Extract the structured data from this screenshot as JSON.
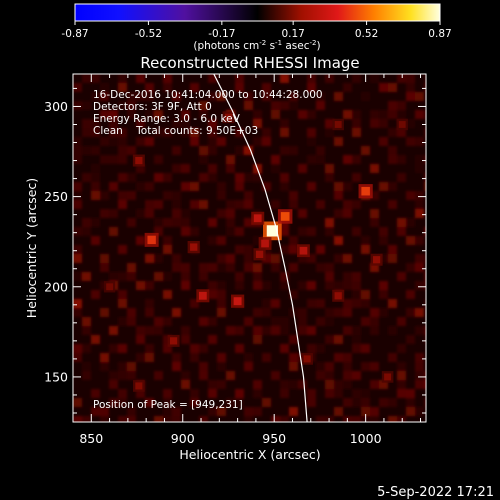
{
  "chart_data": {
    "type": "heatmap",
    "title": "Reconstructed RHESSI Image",
    "xlabel": "Heliocentric X (arcsec)",
    "ylabel": "Heliocentric Y (arcsec)",
    "xlim": [
      840,
      1033
    ],
    "ylim": [
      125,
      318
    ],
    "xticks": [
      850,
      900,
      950,
      1000
    ],
    "yticks": [
      150,
      200,
      250,
      300
    ],
    "colorbar": {
      "min": -0.87,
      "max": 0.87,
      "tick_values": [
        -0.87,
        -0.52,
        -0.17,
        0.17,
        0.52,
        0.87
      ],
      "tick_labels": [
        "-0.87",
        "-0.52",
        "-0.17",
        "0.17",
        "0.52",
        "0.87"
      ],
      "unit_main": "(photons cm",
      "unit_exp1": "-2",
      "unit_mid": " s",
      "unit_exp2": "-1",
      "unit_end": " asec",
      "unit_exp3": "-2",
      "unit_close": ")"
    },
    "annotations": [
      "16-Dec-2016 10:41:04.000 to 10:44:28.000",
      "Detectors: 3F 9F, Att 0",
      "Energy Range: 3.0 - 6.0 keV",
      "Clean    Total counts: 9.50E+03"
    ],
    "peak_label": "Position of Peak = [949,231]",
    "peak": {
      "x": 949,
      "y": 231,
      "value": 0.87
    },
    "limb": [
      [
        917,
        318
      ],
      [
        927,
        298
      ],
      [
        937,
        276
      ],
      [
        945,
        254
      ],
      [
        951,
        233
      ],
      [
        956,
        210
      ],
      [
        960,
        190
      ],
      [
        963,
        170
      ],
      [
        966,
        150
      ],
      [
        968,
        125
      ]
    ],
    "sources": [
      {
        "x": 949,
        "y": 231,
        "value": 0.87
      },
      {
        "x": 956,
        "y": 239,
        "value": 0.45
      },
      {
        "x": 941,
        "y": 238,
        "value": 0.3
      },
      {
        "x": 945,
        "y": 224,
        "value": 0.28
      },
      {
        "x": 942,
        "y": 218,
        "value": 0.22
      },
      {
        "x": 883,
        "y": 226,
        "value": 0.4
      },
      {
        "x": 1000,
        "y": 253,
        "value": 0.42
      },
      {
        "x": 930,
        "y": 192,
        "value": 0.32
      },
      {
        "x": 911,
        "y": 195,
        "value": 0.3
      },
      {
        "x": 966,
        "y": 220,
        "value": 0.28
      },
      {
        "x": 906,
        "y": 222,
        "value": 0.22
      },
      {
        "x": 876,
        "y": 270,
        "value": 0.2
      },
      {
        "x": 925,
        "y": 294,
        "value": 0.18
      },
      {
        "x": 1006,
        "y": 215,
        "value": 0.2
      },
      {
        "x": 985,
        "y": 195,
        "value": 0.2
      },
      {
        "x": 895,
        "y": 170,
        "value": 0.2
      },
      {
        "x": 968,
        "y": 160,
        "value": 0.17
      },
      {
        "x": 876,
        "y": 145,
        "value": 0.17
      },
      {
        "x": 1012,
        "y": 150,
        "value": 0.16
      },
      {
        "x": 1020,
        "y": 290,
        "value": 0.14
      },
      {
        "x": 860,
        "y": 200,
        "value": 0.14
      },
      {
        "x": 985,
        "y": 290,
        "value": 0.15
      }
    ]
  },
  "footer_date": "5-Sep-2022 17:21"
}
